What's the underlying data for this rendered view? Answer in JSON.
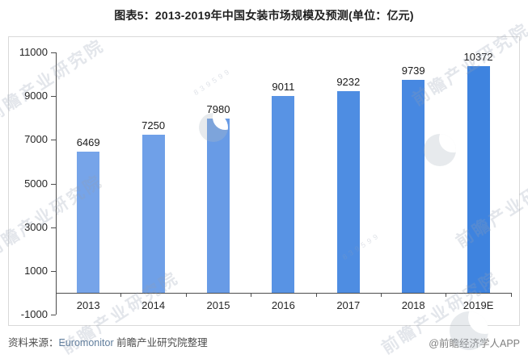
{
  "page": {
    "title": "图表5：2013-2019年中国女装市场规模及预测(单位：亿元)"
  },
  "chart_data": {
    "type": "bar",
    "title": "图表5：2013-2019年中国女装市场规模及预测(单位：亿元)",
    "unit": "亿元",
    "categories": [
      "2013",
      "2014",
      "2015",
      "2016",
      "2017",
      "2018",
      "2019E"
    ],
    "values": [
      6469,
      7250,
      7980,
      9011,
      9232,
      9739,
      10372
    ],
    "xlabel": "",
    "ylabel": "",
    "ylim": [
      -1000,
      11000
    ],
    "yticks": [
      11000,
      9000,
      7000,
      5000,
      3000,
      1000,
      -1000
    ],
    "grid": false,
    "legend": "none",
    "bar_colors": [
      "#76a4e9",
      "#6fa0e8",
      "#689be6",
      "#5893e4",
      "#4e8de2",
      "#4788e1",
      "#3e83df"
    ],
    "axis_color": "#4d4d4d",
    "border_color": "#d9d9d9"
  },
  "footer": {
    "source_prefix": "资料来源：",
    "source_link": "Euromonitor",
    "source_suffix": " 前瞻产业研究院整理",
    "credit": "@前瞻经济学人APP"
  },
  "watermark": {
    "text": "前瞻产业研究院",
    "digits": "839599",
    "logo": "qianzhan-logo"
  }
}
